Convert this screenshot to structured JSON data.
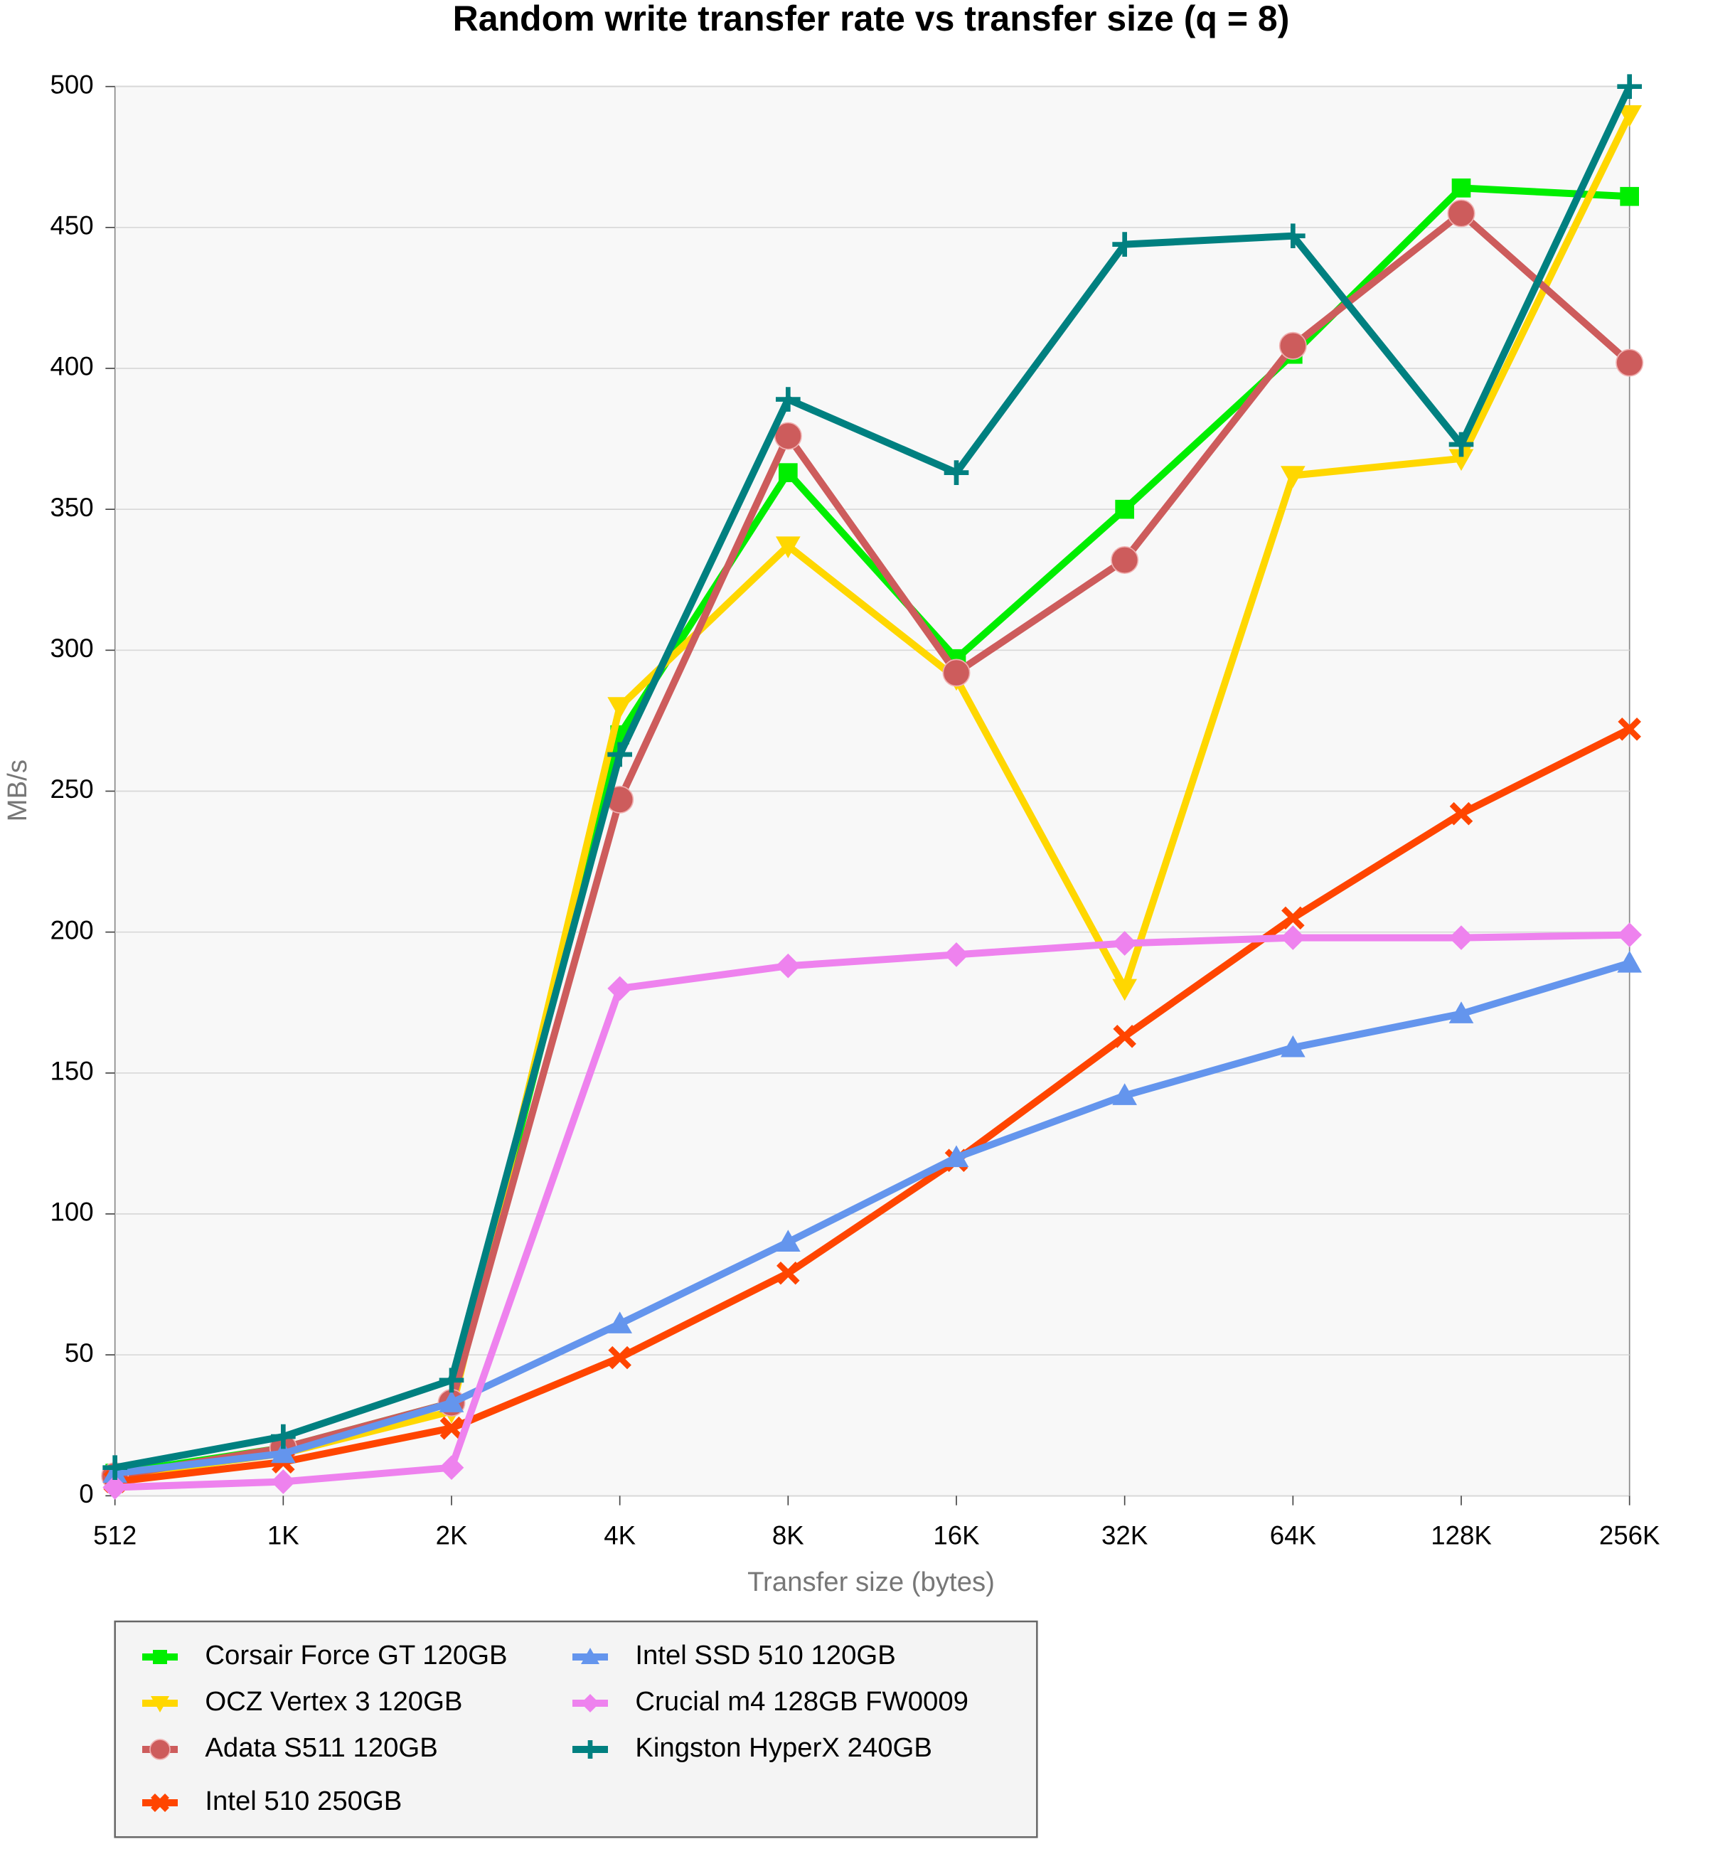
{
  "chart_data": {
    "type": "line",
    "title": "Random write transfer rate vs transfer size (q = 8)",
    "x_label": "Transfer size (bytes)",
    "y_label": "MB/s",
    "categories": [
      "512",
      "1K",
      "2K",
      "4K",
      "8K",
      "16K",
      "32K",
      "64K",
      "128K",
      "256K"
    ],
    "ylim": [
      0,
      500
    ],
    "yticks": [
      0,
      50,
      100,
      150,
      200,
      250,
      300,
      350,
      400,
      450,
      500
    ],
    "grid": true,
    "legend": "bottom",
    "series": [
      {
        "name": "Corsair Force GT 120GB",
        "color": "#00ee00",
        "marker": "square",
        "values": [
          8,
          17,
          33,
          270,
          363,
          297,
          350,
          405,
          464,
          461
        ]
      },
      {
        "name": "OCZ Vertex 3 120GB",
        "color": "#ffd700",
        "marker": "triangle-down",
        "values": [
          7,
          15,
          30,
          280,
          337,
          290,
          180,
          362,
          368,
          490
        ]
      },
      {
        "name": "Adata S511 120GB",
        "color": "#cd5c5c",
        "marker": "circle",
        "values": [
          7,
          17,
          33,
          247,
          376,
          292,
          332,
          408,
          455,
          402
        ]
      },
      {
        "name": "Intel 510 250GB",
        "color": "#ff4500",
        "marker": "x",
        "values": [
          5,
          12,
          24,
          49,
          79,
          119,
          163,
          205,
          242,
          272
        ]
      },
      {
        "name": "Intel SSD 510 120GB",
        "color": "#6495ed",
        "marker": "triangle-up",
        "values": [
          8,
          15,
          33,
          61,
          90,
          120,
          142,
          159,
          171,
          189
        ]
      },
      {
        "name": "Crucial m4 128GB FW0009",
        "color": "#ee82ee",
        "marker": "diamond",
        "values": [
          3,
          5,
          10,
          180,
          188,
          192,
          196,
          198,
          198,
          199
        ]
      },
      {
        "name": "Kingston HyperX 240GB",
        "color": "#008080",
        "marker": "plus",
        "values": [
          10,
          21,
          41,
          263,
          389,
          363,
          444,
          447,
          373,
          500
        ]
      }
    ]
  }
}
